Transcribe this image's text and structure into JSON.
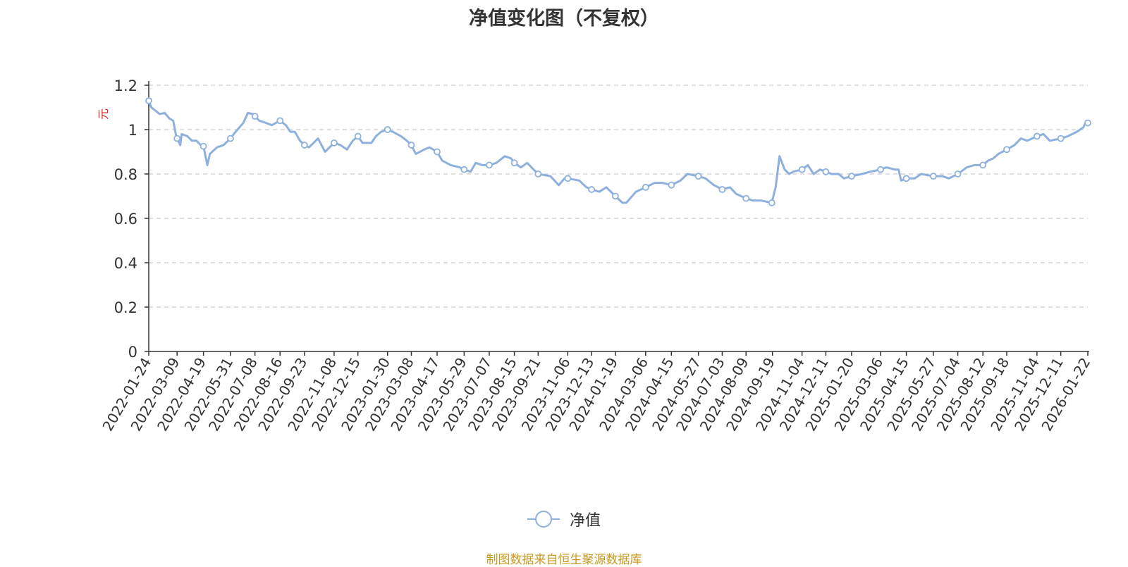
{
  "title": "净值变化图（不复权）",
  "source_note": "制图数据来自恒生聚源数据库",
  "colors": {
    "series": "#8eb0dd",
    "title": "#333333",
    "axis": "#333333",
    "grid": "#cccccc",
    "unit": "#e02020",
    "source": "#c79a1d"
  },
  "chart_data": {
    "type": "line",
    "title": "净值变化图（不复权）",
    "ylabel": "元",
    "ylim": [
      0,
      1.2
    ],
    "yticks": [
      "0",
      "0.2",
      "0.4",
      "0.6",
      "0.8",
      "1",
      "1.2"
    ],
    "xticks": [
      "2022-01-24",
      "2022-03-09",
      "2022-04-19",
      "2022-05-31",
      "2022-07-08",
      "2022-08-16",
      "2022-09-23",
      "2022-11-08",
      "2022-12-15",
      "2023-01-30",
      "2023-03-08",
      "2023-04-17",
      "2023-05-29",
      "2023-07-07",
      "2023-08-15",
      "2023-09-21",
      "2023-11-06",
      "2023-12-13",
      "2024-01-19",
      "2024-03-06",
      "2024-04-15",
      "2024-05-27",
      "2024-07-03",
      "2024-08-09",
      "2024-09-19",
      "2024-11-04",
      "2024-12-11",
      "2025-01-20",
      "2025-03-06",
      "2025-04-15",
      "2025-05-27",
      "2025-07-04",
      "2025-08-12",
      "2025-09-18",
      "2025-11-04",
      "2025-12-11",
      "2026-01-22"
    ],
    "grid": true,
    "legend": "bottom-center",
    "series": [
      {
        "name": "净值",
        "points": [
          [
            "2022-01-24",
            1.13
          ],
          [
            "2022-01-28",
            1.1
          ],
          [
            "2022-02-10",
            1.07
          ],
          [
            "2022-02-18",
            1.075
          ],
          [
            "2022-02-25",
            1.05
          ],
          [
            "2022-03-03",
            1.04
          ],
          [
            "2022-03-07",
            0.98
          ],
          [
            "2022-03-09",
            0.96
          ],
          [
            "2022-03-14",
            0.93
          ],
          [
            "2022-03-16",
            0.98
          ],
          [
            "2022-03-25",
            0.97
          ],
          [
            "2022-04-01",
            0.95
          ],
          [
            "2022-04-08",
            0.95
          ],
          [
            "2022-04-15",
            0.93
          ],
          [
            "2022-04-19",
            0.925
          ],
          [
            "2022-04-25",
            0.84
          ],
          [
            "2022-04-29",
            0.89
          ],
          [
            "2022-05-10",
            0.92
          ],
          [
            "2022-05-20",
            0.93
          ],
          [
            "2022-05-31",
            0.96
          ],
          [
            "2022-06-08",
            0.99
          ],
          [
            "2022-06-20",
            1.03
          ],
          [
            "2022-06-27",
            1.075
          ],
          [
            "2022-07-05",
            1.07
          ],
          [
            "2022-07-08",
            1.06
          ],
          [
            "2022-07-15",
            1.04
          ],
          [
            "2022-07-25",
            1.03
          ],
          [
            "2022-08-03",
            1.02
          ],
          [
            "2022-08-16",
            1.04
          ],
          [
            "2022-08-25",
            1.02
          ],
          [
            "2022-09-01",
            0.99
          ],
          [
            "2022-09-08",
            0.99
          ],
          [
            "2022-09-16",
            0.95
          ],
          [
            "2022-09-23",
            0.93
          ],
          [
            "2022-09-30",
            0.92
          ],
          [
            "2022-10-14",
            0.96
          ],
          [
            "2022-10-25",
            0.9
          ],
          [
            "2022-11-01",
            0.92
          ],
          [
            "2022-11-08",
            0.94
          ],
          [
            "2022-11-18",
            0.93
          ],
          [
            "2022-11-28",
            0.91
          ],
          [
            "2022-12-07",
            0.95
          ],
          [
            "2022-12-15",
            0.97
          ],
          [
            "2022-12-22",
            0.94
          ],
          [
            "2023-01-05",
            0.94
          ],
          [
            "2023-01-12",
            0.97
          ],
          [
            "2023-01-20",
            0.99
          ],
          [
            "2023-01-30",
            1.0
          ],
          [
            "2023-02-07",
            0.99
          ],
          [
            "2023-02-20",
            0.97
          ],
          [
            "2023-03-01",
            0.95
          ],
          [
            "2023-03-08",
            0.93
          ],
          [
            "2023-03-15",
            0.89
          ],
          [
            "2023-03-28",
            0.91
          ],
          [
            "2023-04-05",
            0.92
          ],
          [
            "2023-04-17",
            0.9
          ],
          [
            "2023-04-25",
            0.86
          ],
          [
            "2023-05-08",
            0.84
          ],
          [
            "2023-05-22",
            0.83
          ],
          [
            "2023-05-29",
            0.82
          ],
          [
            "2023-06-08",
            0.81
          ],
          [
            "2023-06-16",
            0.85
          ],
          [
            "2023-06-26",
            0.84
          ],
          [
            "2023-07-07",
            0.84
          ],
          [
            "2023-07-18",
            0.85
          ],
          [
            "2023-07-31",
            0.88
          ],
          [
            "2023-08-10",
            0.87
          ],
          [
            "2023-08-15",
            0.85
          ],
          [
            "2023-08-25",
            0.83
          ],
          [
            "2023-09-04",
            0.85
          ],
          [
            "2023-09-14",
            0.82
          ],
          [
            "2023-09-21",
            0.8
          ],
          [
            "2023-10-10",
            0.79
          ],
          [
            "2023-10-23",
            0.75
          ],
          [
            "2023-11-01",
            0.78
          ],
          [
            "2023-11-06",
            0.78
          ],
          [
            "2023-11-24",
            0.77
          ],
          [
            "2023-12-05",
            0.74
          ],
          [
            "2023-12-13",
            0.73
          ],
          [
            "2023-12-25",
            0.72
          ],
          [
            "2024-01-05",
            0.74
          ],
          [
            "2024-01-19",
            0.7
          ],
          [
            "2024-01-30",
            0.67
          ],
          [
            "2024-02-05",
            0.67
          ],
          [
            "2024-02-20",
            0.72
          ],
          [
            "2024-03-06",
            0.74
          ],
          [
            "2024-03-20",
            0.76
          ],
          [
            "2024-04-01",
            0.76
          ],
          [
            "2024-04-15",
            0.75
          ],
          [
            "2024-04-29",
            0.77
          ],
          [
            "2024-05-10",
            0.8
          ],
          [
            "2024-05-27",
            0.79
          ],
          [
            "2024-06-07",
            0.78
          ],
          [
            "2024-06-20",
            0.75
          ],
          [
            "2024-07-03",
            0.73
          ],
          [
            "2024-07-15",
            0.74
          ],
          [
            "2024-07-25",
            0.71
          ],
          [
            "2024-08-09",
            0.69
          ],
          [
            "2024-08-20",
            0.68
          ],
          [
            "2024-09-02",
            0.68
          ],
          [
            "2024-09-18",
            0.67
          ],
          [
            "2024-09-24",
            0.74
          ],
          [
            "2024-09-30",
            0.88
          ],
          [
            "2024-10-08",
            0.82
          ],
          [
            "2024-10-15",
            0.8
          ],
          [
            "2024-10-21",
            0.81
          ],
          [
            "2024-11-04",
            0.82
          ],
          [
            "2024-11-13",
            0.84
          ],
          [
            "2024-11-22",
            0.8
          ],
          [
            "2024-12-02",
            0.82
          ],
          [
            "2024-12-11",
            0.81
          ],
          [
            "2024-12-20",
            0.8
          ],
          [
            "2024-12-31",
            0.8
          ],
          [
            "2025-01-08",
            0.78
          ],
          [
            "2025-01-20",
            0.79
          ],
          [
            "2025-02-05",
            0.8
          ],
          [
            "2025-02-18",
            0.81
          ],
          [
            "2025-03-06",
            0.82
          ],
          [
            "2025-03-15",
            0.83
          ],
          [
            "2025-03-28",
            0.82
          ],
          [
            "2025-04-03",
            0.82
          ],
          [
            "2025-04-07",
            0.77
          ],
          [
            "2025-04-15",
            0.78
          ],
          [
            "2025-04-28",
            0.78
          ],
          [
            "2025-05-08",
            0.8
          ],
          [
            "2025-05-27",
            0.79
          ],
          [
            "2025-06-10",
            0.79
          ],
          [
            "2025-06-20",
            0.78
          ],
          [
            "2025-07-04",
            0.8
          ],
          [
            "2025-07-18",
            0.83
          ],
          [
            "2025-07-30",
            0.84
          ],
          [
            "2025-08-12",
            0.84
          ],
          [
            "2025-08-20",
            0.86
          ],
          [
            "2025-08-28",
            0.87
          ],
          [
            "2025-09-05",
            0.89
          ],
          [
            "2025-09-18",
            0.91
          ],
          [
            "2025-09-30",
            0.93
          ],
          [
            "2025-10-10",
            0.96
          ],
          [
            "2025-10-20",
            0.95
          ],
          [
            "2025-11-04",
            0.97
          ],
          [
            "2025-11-14",
            0.98
          ],
          [
            "2025-11-24",
            0.95
          ],
          [
            "2025-12-11",
            0.96
          ],
          [
            "2025-12-22",
            0.97
          ],
          [
            "2026-01-05",
            0.99
          ],
          [
            "2026-01-15",
            1.01
          ],
          [
            "2026-01-20",
            1.04
          ],
          [
            "2026-01-22",
            1.03
          ]
        ],
        "marker_dates": [
          "2022-01-24",
          "2022-03-09",
          "2022-04-19",
          "2022-05-31",
          "2022-07-08",
          "2022-08-16",
          "2022-09-23",
          "2022-11-08",
          "2022-12-15",
          "2023-01-30",
          "2023-03-08",
          "2023-04-17",
          "2023-05-29",
          "2023-07-07",
          "2023-08-15",
          "2023-09-21",
          "2023-11-06",
          "2023-12-13",
          "2024-01-19",
          "2024-03-06",
          "2024-04-15",
          "2024-05-27",
          "2024-07-03",
          "2024-08-09",
          "2024-09-18",
          "2024-11-04",
          "2024-12-11",
          "2025-01-20",
          "2025-03-06",
          "2025-04-15",
          "2025-05-27",
          "2025-07-04",
          "2025-08-12",
          "2025-09-18",
          "2025-11-04",
          "2025-12-11",
          "2026-01-22"
        ]
      }
    ]
  }
}
